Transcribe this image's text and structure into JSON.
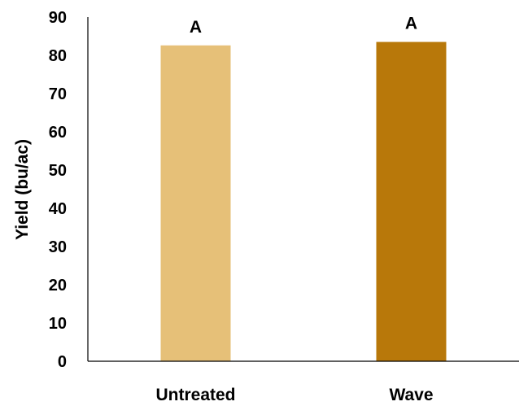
{
  "chart_data": {
    "type": "bar",
    "title": "",
    "xlabel": "",
    "ylabel": "Yield (bu/ac)",
    "ylim": [
      0,
      90
    ],
    "yticks": [
      0,
      10,
      20,
      30,
      40,
      50,
      60,
      70,
      80,
      90
    ],
    "grid": false,
    "legend": "none",
    "categories": [
      "Untreated",
      "Wave"
    ],
    "values": [
      82.6,
      83.5
    ],
    "annotations": [
      "A",
      "A"
    ],
    "colors": [
      "#E6C078",
      "#B8780A"
    ]
  }
}
